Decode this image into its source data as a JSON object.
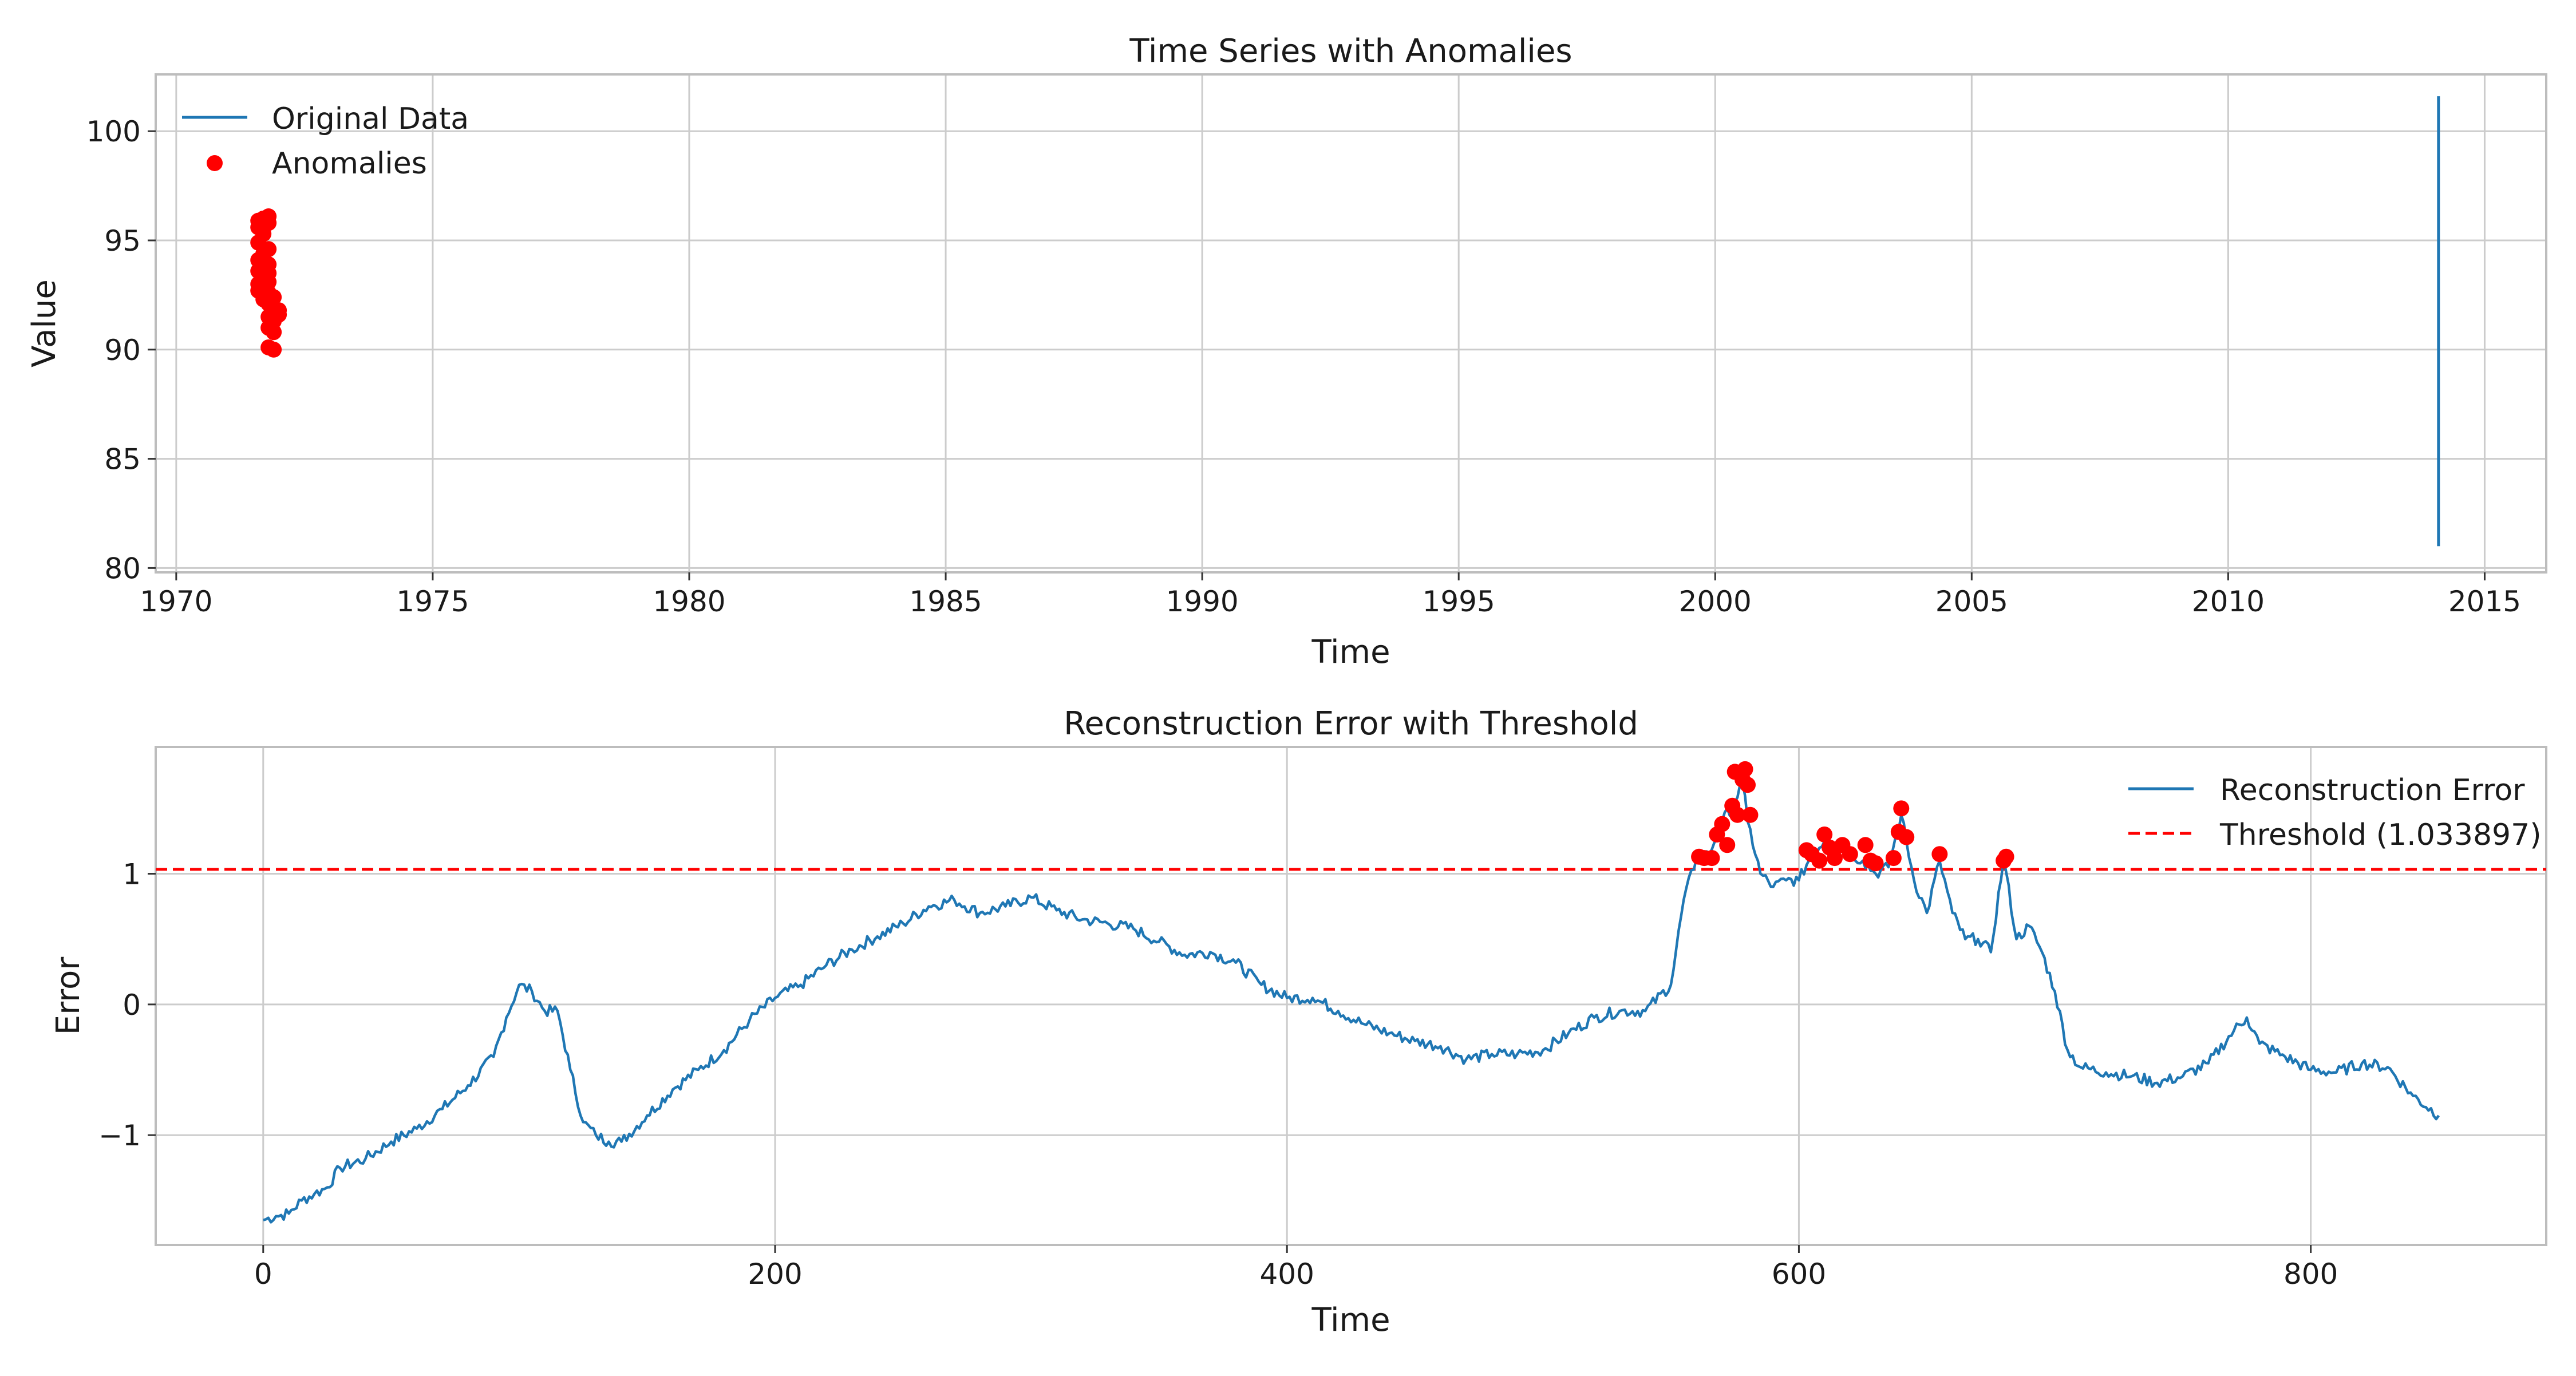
{
  "chart_data": [
    {
      "type": "scatter",
      "title": "Time Series with Anomalies",
      "xlabel": "Time",
      "ylabel": "Value",
      "x_axis": "date",
      "xlim": [
        1969.6,
        2016.2
      ],
      "ylim": [
        79.8,
        102.6
      ],
      "xticks": [
        1970,
        1975,
        1980,
        1985,
        1990,
        1995,
        2000,
        2005,
        2010,
        2015
      ],
      "yticks": [
        80,
        85,
        90,
        95,
        100
      ],
      "grid": true,
      "legend": {
        "position": "upper-left",
        "entries": [
          "Original Data",
          "Anomalies"
        ]
      },
      "series": [
        {
          "name": "Original Data",
          "kind": "line",
          "color": "#1f77b4",
          "points": [
            [
              2014.1,
              81.0
            ],
            [
              2014.1,
              101.6
            ]
          ]
        },
        {
          "name": "Anomalies",
          "kind": "scatter",
          "color": "#ff0000",
          "points": [
            [
              1971.6,
              95.9
            ],
            [
              1971.7,
              96.0
            ],
            [
              1971.8,
              96.1
            ],
            [
              1971.6,
              95.6
            ],
            [
              1971.7,
              95.3
            ],
            [
              1971.8,
              95.8
            ],
            [
              1971.6,
              94.9
            ],
            [
              1971.7,
              94.4
            ],
            [
              1971.8,
              94.6
            ],
            [
              1971.6,
              94.1
            ],
            [
              1971.7,
              94.0
            ],
            [
              1971.8,
              93.9
            ],
            [
              1971.6,
              93.6
            ],
            [
              1971.7,
              93.3
            ],
            [
              1971.8,
              93.5
            ],
            [
              1971.6,
              93.0
            ],
            [
              1971.7,
              92.9
            ],
            [
              1971.8,
              93.1
            ],
            [
              1971.6,
              92.7
            ],
            [
              1971.7,
              92.3
            ],
            [
              1971.8,
              92.6
            ],
            [
              1971.9,
              92.4
            ],
            [
              1971.8,
              92.1
            ],
            [
              1971.9,
              91.8
            ],
            [
              1972.0,
              91.6
            ],
            [
              1972.0,
              91.8
            ],
            [
              1971.8,
              91.5
            ],
            [
              1971.9,
              91.3
            ],
            [
              1971.8,
              91.0
            ],
            [
              1971.9,
              90.8
            ],
            [
              1971.8,
              90.1
            ],
            [
              1971.9,
              90.0
            ]
          ]
        }
      ]
    },
    {
      "type": "line",
      "title": "Reconstruction Error with Threshold",
      "xlabel": "Time",
      "ylabel": "Error",
      "xlim": [
        -42,
        892
      ],
      "ylim": [
        -1.84,
        1.97
      ],
      "xticks": [
        0,
        200,
        400,
        600,
        800
      ],
      "yticks": [
        -1,
        0,
        1
      ],
      "ytick_labels": [
        "−1",
        "0",
        "1"
      ],
      "grid": true,
      "threshold": 1.033897,
      "legend": {
        "position": "upper-right",
        "entries": [
          "Reconstruction Error",
          "Threshold (1.033897)"
        ]
      },
      "series": [
        {
          "name": "Reconstruction Error",
          "color": "#1f77b4",
          "anchors": [
            [
              0,
              -1.65
            ],
            [
              5,
              -1.62
            ],
            [
              10,
              -1.6
            ],
            [
              15,
              -1.5
            ],
            [
              20,
              -1.45
            ],
            [
              25,
              -1.4
            ],
            [
              30,
              -1.25
            ],
            [
              40,
              -1.18
            ],
            [
              50,
              -1.05
            ],
            [
              60,
              -0.95
            ],
            [
              70,
              -0.8
            ],
            [
              80,
              -0.62
            ],
            [
              90,
              -0.4
            ],
            [
              95,
              -0.1
            ],
            [
              100,
              0.15
            ],
            [
              105,
              0.1
            ],
            [
              110,
              -0.05
            ],
            [
              115,
              -0.05
            ],
            [
              120,
              -0.5
            ],
            [
              125,
              -0.9
            ],
            [
              130,
              -1.0
            ],
            [
              135,
              -1.05
            ],
            [
              140,
              -1.05
            ],
            [
              150,
              -0.85
            ],
            [
              160,
              -0.65
            ],
            [
              170,
              -0.5
            ],
            [
              180,
              -0.35
            ],
            [
              190,
              -0.12
            ],
            [
              200,
              0.05
            ],
            [
              210,
              0.15
            ],
            [
              220,
              0.3
            ],
            [
              230,
              0.42
            ],
            [
              240,
              0.52
            ],
            [
              250,
              0.62
            ],
            [
              260,
              0.75
            ],
            [
              270,
              0.8
            ],
            [
              280,
              0.7
            ],
            [
              290,
              0.75
            ],
            [
              300,
              0.82
            ],
            [
              310,
              0.72
            ],
            [
              320,
              0.65
            ],
            [
              330,
              0.62
            ],
            [
              340,
              0.58
            ],
            [
              350,
              0.48
            ],
            [
              360,
              0.38
            ],
            [
              370,
              0.4
            ],
            [
              380,
              0.32
            ],
            [
              390,
              0.15
            ],
            [
              400,
              0.05
            ],
            [
              410,
              0.05
            ],
            [
              420,
              -0.05
            ],
            [
              430,
              -0.15
            ],
            [
              440,
              -0.22
            ],
            [
              450,
              -0.28
            ],
            [
              460,
              -0.32
            ],
            [
              470,
              -0.42
            ],
            [
              480,
              -0.38
            ],
            [
              490,
              -0.38
            ],
            [
              500,
              -0.35
            ],
            [
              510,
              -0.22
            ],
            [
              520,
              -0.1
            ],
            [
              530,
              -0.05
            ],
            [
              540,
              -0.05
            ],
            [
              550,
              0.15
            ],
            [
              555,
              0.8
            ],
            [
              560,
              1.12
            ],
            [
              565,
              1.15
            ],
            [
              570,
              1.4
            ],
            [
              575,
              1.55
            ],
            [
              578,
              1.7
            ],
            [
              580,
              1.4
            ],
            [
              585,
              1.0
            ],
            [
              590,
              0.9
            ],
            [
              595,
              0.95
            ],
            [
              600,
              0.95
            ],
            [
              605,
              1.15
            ],
            [
              610,
              1.25
            ],
            [
              615,
              1.2
            ],
            [
              620,
              1.15
            ],
            [
              625,
              1.1
            ],
            [
              630,
              1.0
            ],
            [
              635,
              1.05
            ],
            [
              640,
              1.45
            ],
            [
              645,
              0.95
            ],
            [
              650,
              0.7
            ],
            [
              655,
              1.1
            ],
            [
              660,
              0.7
            ],
            [
              665,
              0.5
            ],
            [
              670,
              0.5
            ],
            [
              675,
              0.4
            ],
            [
              680,
              1.12
            ],
            [
              685,
              0.5
            ],
            [
              690,
              0.6
            ],
            [
              695,
              0.4
            ],
            [
              700,
              0.1
            ],
            [
              705,
              -0.35
            ],
            [
              710,
              -0.48
            ],
            [
              720,
              -0.52
            ],
            [
              730,
              -0.55
            ],
            [
              740,
              -0.6
            ],
            [
              750,
              -0.55
            ],
            [
              760,
              -0.45
            ],
            [
              770,
              -0.2
            ],
            [
              775,
              -0.1
            ],
            [
              780,
              -0.3
            ],
            [
              790,
              -0.4
            ],
            [
              800,
              -0.5
            ],
            [
              810,
              -0.52
            ],
            [
              820,
              -0.45
            ],
            [
              830,
              -0.48
            ],
            [
              840,
              -0.7
            ],
            [
              850,
              -0.85
            ]
          ]
        },
        {
          "name": "Anomalies",
          "kind": "scatter",
          "color": "#ff0000",
          "points": [
            [
              561,
              1.13
            ],
            [
              563,
              1.12
            ],
            [
              566,
              1.12
            ],
            [
              568,
              1.3
            ],
            [
              570,
              1.38
            ],
            [
              572,
              1.22
            ],
            [
              574,
              1.52
            ],
            [
              575,
              1.78
            ],
            [
              576,
              1.45
            ],
            [
              578,
              1.72
            ],
            [
              579,
              1.8
            ],
            [
              580,
              1.68
            ],
            [
              581,
              1.45
            ],
            [
              603,
              1.18
            ],
            [
              605,
              1.15
            ],
            [
              608,
              1.1
            ],
            [
              610,
              1.3
            ],
            [
              612,
              1.2
            ],
            [
              614,
              1.12
            ],
            [
              617,
              1.22
            ],
            [
              620,
              1.15
            ],
            [
              626,
              1.22
            ],
            [
              628,
              1.1
            ],
            [
              630,
              1.08
            ],
            [
              637,
              1.12
            ],
            [
              639,
              1.32
            ],
            [
              640,
              1.5
            ],
            [
              642,
              1.28
            ],
            [
              655,
              1.15
            ],
            [
              680,
              1.1
            ],
            [
              681,
              1.13
            ]
          ]
        }
      ]
    }
  ]
}
